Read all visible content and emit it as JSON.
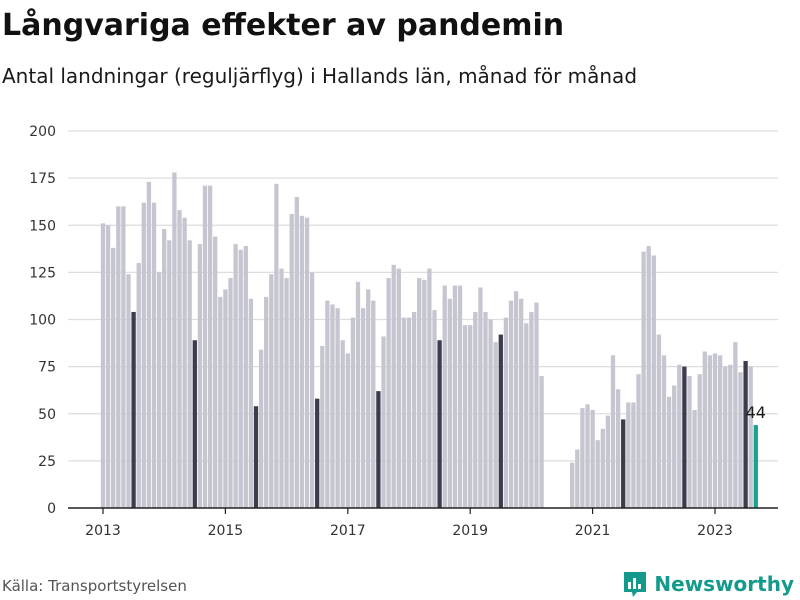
{
  "title": "Långvariga effekter av pandemin",
  "subtitle": "Antal landningar (reguljärflyg) i Hallands län, månad för månad",
  "source": "Källa: Transportstyrelsen",
  "brand": {
    "name": "Newsworthy",
    "icon": "newsworthy-logo-icon",
    "color": "#139a8c"
  },
  "colors": {
    "bar": "#c6c6d1",
    "highlight_bar": "#3d3c4d",
    "latest_bar": "#17a393",
    "grid": "#dddddd",
    "axis": "#222222"
  },
  "chart_data": {
    "type": "bar",
    "start": "2013-01",
    "ylim": [
      0,
      200
    ],
    "yticks": [
      0,
      25,
      50,
      75,
      100,
      125,
      150,
      175,
      200
    ],
    "xticks": [
      "2013",
      "2015",
      "2017",
      "2019",
      "2021",
      "2023"
    ],
    "grid": true,
    "highlight_month": 7,
    "values": [
      151,
      150,
      138,
      160,
      160,
      124,
      104,
      130,
      162,
      173,
      162,
      125,
      148,
      142,
      178,
      158,
      154,
      142,
      89,
      140,
      171,
      171,
      144,
      112,
      116,
      122,
      140,
      137,
      139,
      111,
      54,
      84,
      112,
      124,
      172,
      127,
      122,
      156,
      165,
      155,
      154,
      125,
      58,
      86,
      110,
      108,
      106,
      89,
      82,
      101,
      120,
      106,
      116,
      110,
      62,
      91,
      122,
      129,
      127,
      101,
      101,
      104,
      122,
      121,
      127,
      105,
      89,
      118,
      111,
      118,
      118,
      97,
      97,
      104,
      117,
      104,
      100,
      88,
      92,
      101,
      110,
      115,
      111,
      98,
      104,
      109,
      70,
      0,
      0,
      0,
      0,
      0,
      24,
      31,
      53,
      55,
      52,
      36,
      42,
      49,
      81,
      63,
      47,
      56,
      56,
      71,
      136,
      139,
      134,
      92,
      81,
      59,
      65,
      76,
      75,
      70,
      52,
      71,
      83,
      81,
      82,
      81,
      75,
      76,
      88,
      72,
      78,
      75,
      44
    ],
    "last_label": "44"
  }
}
